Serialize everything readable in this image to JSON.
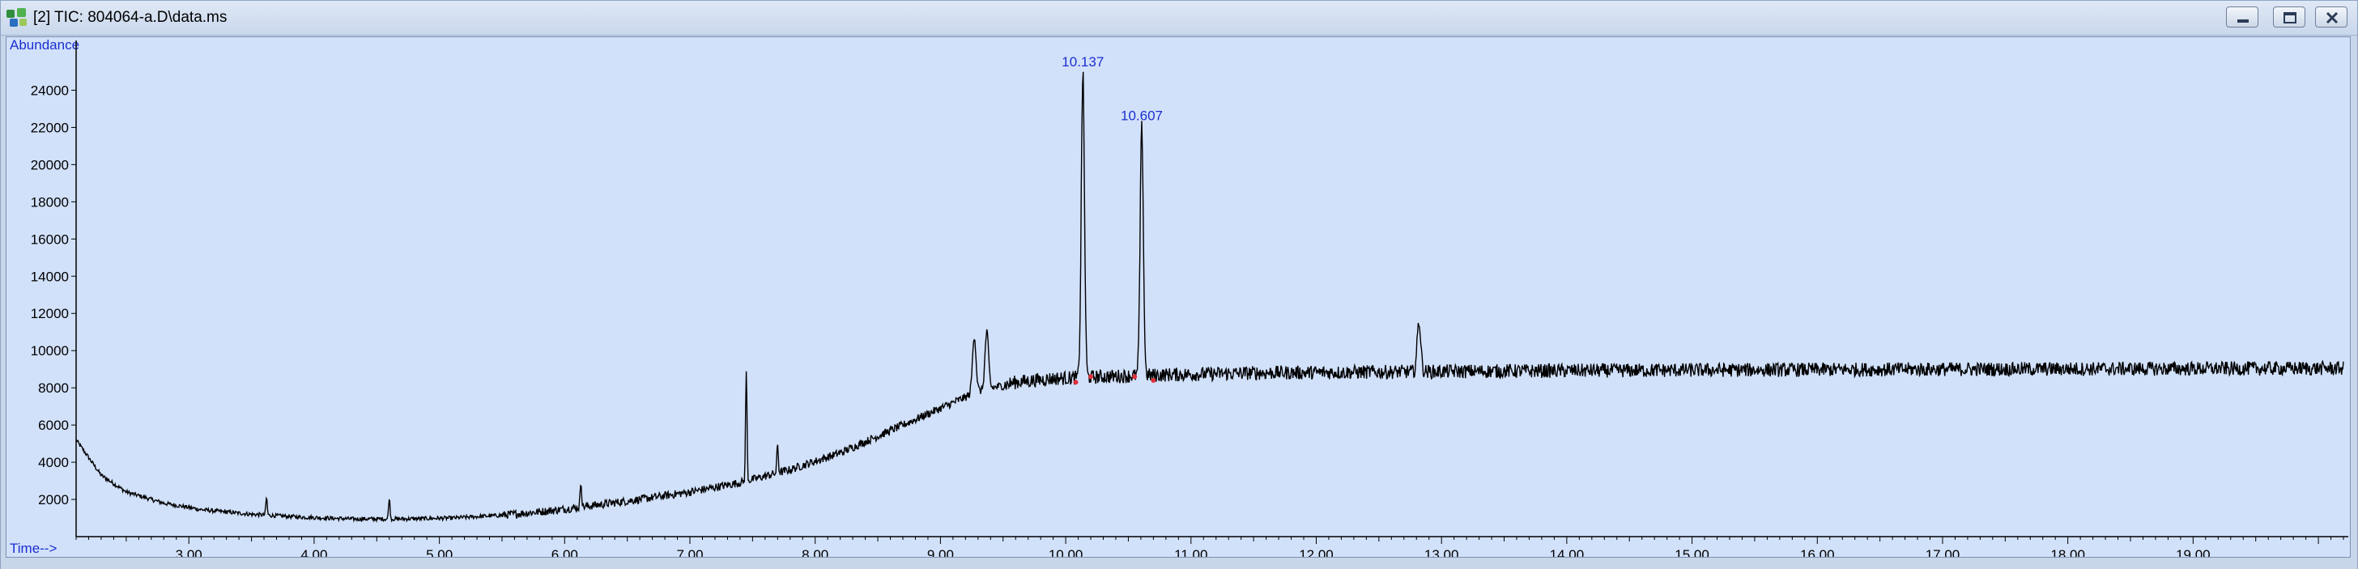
{
  "window": {
    "title": "[2] TIC: 804064-a.D\\data.ms",
    "controls": [
      "minimize",
      "restore",
      "close"
    ]
  },
  "chart_data": {
    "type": "line",
    "title": "",
    "ylabel": "Abundance",
    "xlabel": "Time-->",
    "xlim": [
      2.1,
      20.2
    ],
    "ylim": [
      0,
      26500
    ],
    "x_ticks": [
      "3.00",
      "4.00",
      "5.00",
      "6.00",
      "7.00",
      "8.00",
      "9.00",
      "10.00",
      "11.00",
      "12.00",
      "13.00",
      "14.00",
      "15.00",
      "16.00",
      "17.00",
      "18.00",
      "19.00"
    ],
    "y_ticks": [
      "2000",
      "4000",
      "6000",
      "8000",
      "10000",
      "12000",
      "14000",
      "16000",
      "18000",
      "20000",
      "22000",
      "24000"
    ],
    "grid": false,
    "colors": {
      "trace": "#000000",
      "label": "#1a2fd0",
      "marker": "#e0303a",
      "background": "#d2e1fa"
    },
    "peak_labels": [
      {
        "time": 10.137,
        "text": "10.137",
        "abundance": 24900
      },
      {
        "time": 10.607,
        "text": "10.607",
        "abundance": 22000
      }
    ],
    "integration_markers": [
      {
        "time": 10.08,
        "abundance": 8300
      },
      {
        "time": 10.2,
        "abundance": 8600
      },
      {
        "time": 10.55,
        "abundance": 8600
      },
      {
        "time": 10.7,
        "abundance": 8400
      }
    ],
    "series": [
      {
        "points": [
          [
            2.1,
            5200
          ],
          [
            2.3,
            3300
          ],
          [
            2.5,
            2400
          ],
          [
            2.8,
            1800
          ],
          [
            3.1,
            1450
          ],
          [
            3.5,
            1200
          ],
          [
            3.9,
            1050
          ],
          [
            4.3,
            950
          ],
          [
            4.7,
            950
          ],
          [
            5.1,
            1000
          ],
          [
            5.5,
            1150
          ],
          [
            5.9,
            1400
          ],
          [
            6.2,
            1650
          ],
          [
            6.6,
            2000
          ],
          [
            7.0,
            2400
          ],
          [
            7.4,
            2900
          ],
          [
            7.8,
            3600
          ],
          [
            8.2,
            4500
          ],
          [
            8.6,
            5700
          ],
          [
            9.0,
            6900
          ],
          [
            9.3,
            7800
          ],
          [
            9.6,
            8300
          ],
          [
            9.9,
            8500
          ],
          [
            10.3,
            8600
          ],
          [
            10.8,
            8700
          ],
          [
            11.5,
            8800
          ],
          [
            12.5,
            8850
          ],
          [
            13.5,
            8900
          ],
          [
            15.0,
            8950
          ],
          [
            17.0,
            9000
          ],
          [
            20.2,
            9050
          ]
        ],
        "spikes": [
          [
            3.62,
            2100
          ],
          [
            4.6,
            2100
          ],
          [
            6.13,
            3000
          ],
          [
            7.45,
            9000
          ],
          [
            7.7,
            5000
          ],
          [
            9.27,
            10800
          ],
          [
            9.37,
            11000
          ],
          [
            10.137,
            24900
          ],
          [
            10.607,
            22000
          ],
          [
            12.82,
            11600
          ]
        ]
      }
    ]
  }
}
